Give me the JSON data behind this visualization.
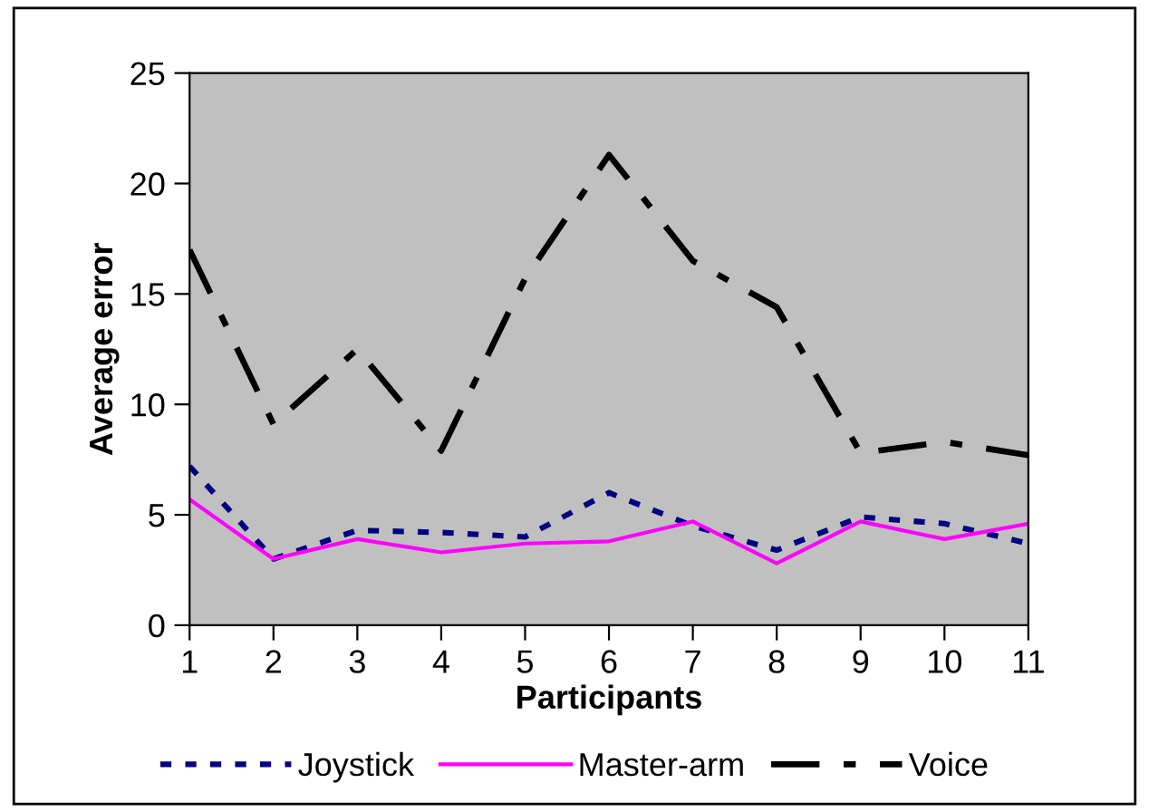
{
  "chart_data": {
    "type": "line",
    "xlabel": "Participants",
    "ylabel": "Average error",
    "categories": [
      "1",
      "2",
      "3",
      "4",
      "5",
      "6",
      "7",
      "8",
      "9",
      "10",
      "11"
    ],
    "series": [
      {
        "name": "Joystick",
        "color": "#000080",
        "line_style": "dotted",
        "values": [
          7.2,
          3.0,
          4.3,
          4.2,
          4.0,
          6.0,
          4.5,
          3.4,
          4.9,
          4.6,
          3.7
        ]
      },
      {
        "name": "Master-arm",
        "color": "#ff00ff",
        "line_style": "solid",
        "values": [
          5.7,
          3.0,
          3.9,
          3.3,
          3.7,
          3.8,
          4.7,
          2.8,
          4.7,
          3.9,
          4.6
        ]
      },
      {
        "name": "Voice",
        "color": "#000000",
        "line_style": "dashdot",
        "values": [
          17.0,
          9.1,
          12.5,
          7.9,
          15.7,
          21.3,
          16.5,
          14.4,
          7.8,
          8.3,
          7.7
        ]
      }
    ],
    "ylim": [
      0,
      25
    ],
    "yticks": [
      0,
      5,
      10,
      15,
      20,
      25
    ],
    "grid": false,
    "legend": "bottom",
    "marker": "none"
  }
}
